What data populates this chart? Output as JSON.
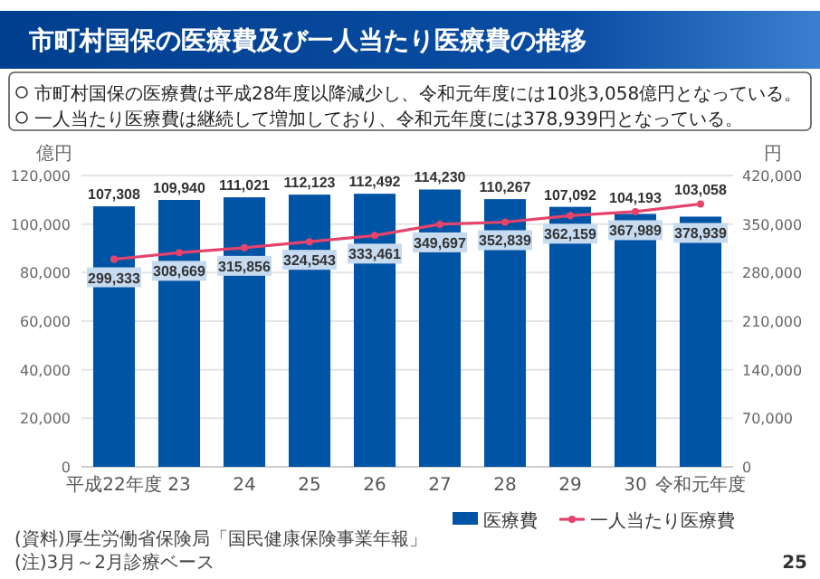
{
  "chart_data": {
    "type": "bar",
    "title": "市町村国保の医療費及び一人当たり医療費の推移",
    "annotations": [
      "市町村国保の医療費は平成28年度以降減少し、令和元年度には10兆3,058億円となっている。",
      "一人当たり医療費は継続して増加しており、令和元年度には378,939円となっている。",
      "(資料)厚生労働省保険局「国民健康保険事業年報」",
      "(注)3月～2月診療ベース",
      "25"
    ],
    "ylabel": "億円",
    "y2label": "円",
    "categories": [
      "平成22年度",
      "23",
      "24",
      "25",
      "26",
      "27",
      "28",
      "29",
      "30",
      "令和元年度"
    ],
    "series": [
      {
        "name": "医療費",
        "color": "#0054a6",
        "values": [
          107308,
          109940,
          111021,
          112123,
          112492,
          114230,
          110267,
          107092,
          104193,
          103058
        ],
        "value_labels": [
          "107,308",
          "109,940",
          "111,021",
          "112,123",
          "112,492",
          "114,230",
          "110,267",
          "107,092",
          "104,193",
          "103,058"
        ]
      },
      {
        "name": "一人当たり医療費",
        "type": "line",
        "axis": "y2",
        "color": "#e5436b",
        "marker": "circle",
        "values": [
          299333,
          308669,
          315856,
          324543,
          333461,
          349697,
          352839,
          362159,
          367989,
          378939
        ],
        "value_labels": [
          "299,333",
          "308,669",
          "315,856",
          "324,543",
          "333,461",
          "349,697",
          "352,839",
          "362,159",
          "367,989",
          "378,939"
        ]
      }
    ],
    "ylim": [
      0,
      120000
    ],
    "yticks": [
      {
        "value": 0,
        "label": "0"
      },
      {
        "value": 20000,
        "label": "20,000"
      },
      {
        "value": 40000,
        "label": "40,000"
      },
      {
        "value": 60000,
        "label": "60,000"
      },
      {
        "value": 80000,
        "label": "80,000"
      },
      {
        "value": 100000,
        "label": "100,000"
      },
      {
        "value": 120000,
        "label": "120,000"
      }
    ],
    "y2lim": [
      0,
      420000
    ],
    "y2ticks": [
      {
        "value": 0,
        "label": "0"
      },
      {
        "value": 70000,
        "label": "70,000"
      },
      {
        "value": 140000,
        "label": "140,000"
      },
      {
        "value": 210000,
        "label": "210,000"
      },
      {
        "value": 280000,
        "label": "280,000"
      },
      {
        "value": 350000,
        "label": "350,000"
      },
      {
        "value": 420000,
        "label": "420,000"
      }
    ],
    "grid": "y",
    "legend": "bottom"
  }
}
